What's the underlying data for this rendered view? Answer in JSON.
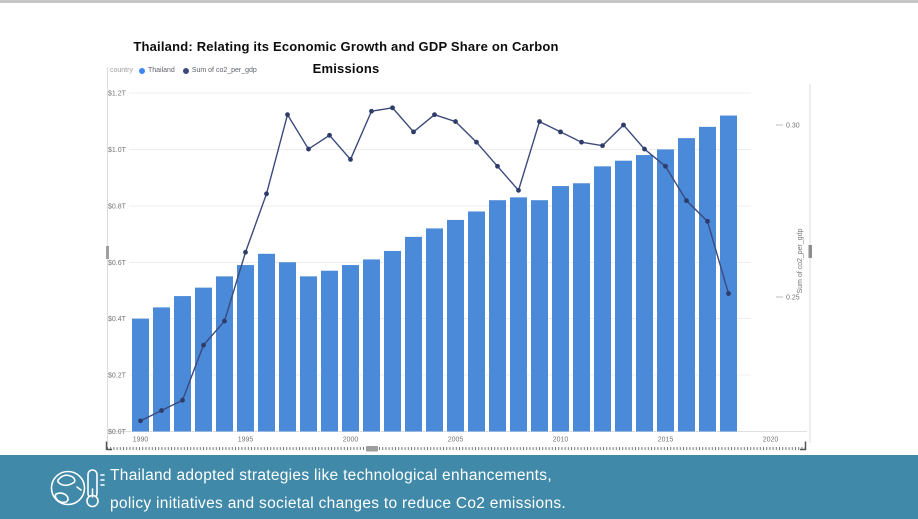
{
  "title": "Thailand: Relating its Economic Growth and GDP Share on Carbon Emissions",
  "legend": {
    "prefix_label": "country",
    "series": [
      {
        "label": "Thailand",
        "color": "#4285f4"
      },
      {
        "label": "Sum of co2_per_gdp",
        "color": "#3c4b7d"
      }
    ]
  },
  "chart_data": {
    "type": "bar",
    "subtype": "combo bar+line, dual axis",
    "x": [
      1990,
      1991,
      1992,
      1993,
      1994,
      1995,
      1996,
      1997,
      1998,
      1999,
      2000,
      2001,
      2002,
      2003,
      2004,
      2005,
      2006,
      2007,
      2008,
      2009,
      2010,
      2011,
      2012,
      2013,
      2014,
      2015,
      2016,
      2017,
      2018
    ],
    "series": [
      {
        "name": "Thailand",
        "type": "bar",
        "axis": "left",
        "color": "#4b89d9",
        "values": [
          0.4,
          0.44,
          0.48,
          0.51,
          0.55,
          0.59,
          0.63,
          0.6,
          0.55,
          0.57,
          0.59,
          0.61,
          0.64,
          0.69,
          0.72,
          0.75,
          0.78,
          0.82,
          0.83,
          0.82,
          0.87,
          0.88,
          0.94,
          0.96,
          0.98,
          1.0,
          1.04,
          1.08,
          1.12
        ]
      },
      {
        "name": "Sum of co2_per_gdp",
        "type": "line",
        "axis": "right",
        "color": "#3b4a7c",
        "dot_color": "#2e3c69",
        "values": [
          0.214,
          0.217,
          0.22,
          0.236,
          0.243,
          0.263,
          0.28,
          0.303,
          0.293,
          0.297,
          0.29,
          0.304,
          0.305,
          0.298,
          0.303,
          0.301,
          0.295,
          0.288,
          0.281,
          0.301,
          0.298,
          0.295,
          0.294,
          0.3,
          0.293,
          0.288,
          0.278,
          0.272,
          0.251
        ]
      }
    ],
    "left_axis": {
      "ticks": [
        0,
        0.2,
        0.4,
        0.6,
        0.8,
        1.0,
        1.2
      ],
      "tick_labels": [
        "$0.0T",
        "$0.2T",
        "$0.4T",
        "$0.6T",
        "$0.8T",
        "$1.0T",
        "$1.2T"
      ],
      "range": [
        0,
        1.2
      ]
    },
    "right_axis": {
      "title": "Sum of co2_per_gdp",
      "ticks": [
        0.25,
        0.3
      ],
      "tick_labels": [
        "0.25",
        "0.30"
      ]
    },
    "x_axis": {
      "tick_years": [
        1990,
        1995,
        2000,
        2005,
        2010,
        2015,
        2020
      ],
      "range": [
        1989,
        2020
      ]
    },
    "grid": true,
    "legend_position": "top-left",
    "axis_text_color": "#757575",
    "grid_color": "#ededed"
  },
  "footer": {
    "bg_color": "#4089a8",
    "icon": "globe-thermometer-icon",
    "lines": [
      "Thailand adopted strategies like technological enhancements,",
      "policy initiatives and societal changes to reduce Co2 emissions."
    ]
  }
}
